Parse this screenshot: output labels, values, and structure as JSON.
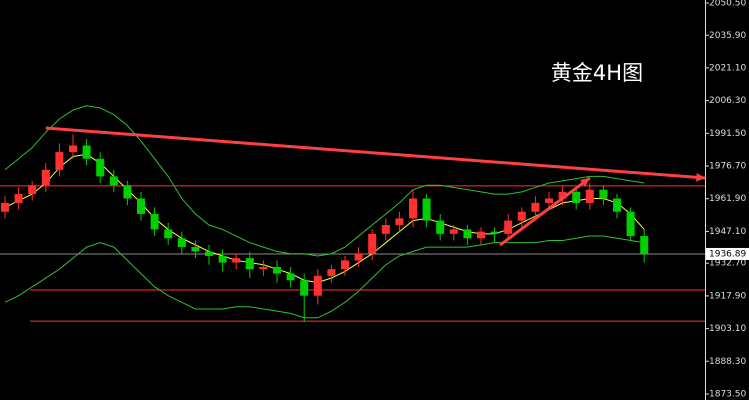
{
  "chart_data": {
    "type": "candlestick",
    "title": "黄金4H图",
    "opens": [
      1956,
      1960,
      1964,
      1968,
      1975,
      1983,
      1986,
      1980,
      1972,
      1968,
      1962,
      1955,
      1948,
      1944,
      1940,
      1938,
      1936,
      1933,
      1935,
      1930,
      1931,
      1928,
      1925,
      1918,
      1927,
      1930,
      1934,
      1937,
      1946,
      1950,
      1953,
      1962,
      1952,
      1946,
      1948,
      1944,
      1947,
      1946,
      1952,
      1956,
      1960,
      1962,
      1965,
      1960,
      1966,
      1962,
      1956,
      1945
    ],
    "highs": [
      1963,
      1967,
      1970,
      1978,
      1987,
      1991,
      1989,
      1983,
      1975,
      1970,
      1965,
      1958,
      1951,
      1947,
      1943,
      1941,
      1939,
      1937,
      1938,
      1934,
      1934,
      1931,
      1928,
      1930,
      1932,
      1936,
      1940,
      1948,
      1953,
      1956,
      1966,
      1964,
      1955,
      1950,
      1950,
      1949,
      1949,
      1955,
      1958,
      1963,
      1965,
      1968,
      1967,
      1969,
      1968,
      1964,
      1958,
      1948
    ],
    "lows": [
      1953,
      1957,
      1961,
      1965,
      1972,
      1980,
      1977,
      1969,
      1965,
      1959,
      1952,
      1945,
      1941,
      1937,
      1935,
      1932,
      1929,
      1930,
      1926,
      1927,
      1924,
      1922,
      1906,
      1914,
      1924,
      1927,
      1931,
      1934,
      1943,
      1947,
      1949,
      1949,
      1943,
      1943,
      1941,
      1941,
      1942,
      1943,
      1949,
      1953,
      1957,
      1959,
      1957,
      1957,
      1959,
      1953,
      1943,
      1933
    ],
    "closes": [
      1960,
      1964,
      1968,
      1975,
      1983,
      1986,
      1980,
      1972,
      1968,
      1962,
      1955,
      1948,
      1944,
      1940,
      1938,
      1936,
      1933,
      1935,
      1930,
      1931,
      1928,
      1925,
      1918,
      1927,
      1930,
      1934,
      1937,
      1946,
      1950,
      1953,
      1962,
      1952,
      1946,
      1948,
      1944,
      1947,
      1946,
      1952,
      1956,
      1960,
      1962,
      1965,
      1960,
      1966,
      1962,
      1956,
      1945,
      1937
    ],
    "up_color": "#ff3030",
    "down_color": "#00d000",
    "series": [
      {
        "color": "#ffff40",
        "values": [
          1958,
          1961,
          1964,
          1969,
          1976,
          1981,
          1982,
          1978,
          1972,
          1966,
          1960,
          1953,
          1948,
          1944,
          1941,
          1938,
          1936,
          1934,
          1933,
          1932,
          1930,
          1928,
          1925,
          1924,
          1926,
          1929,
          1933,
          1937,
          1942,
          1947,
          1952,
          1953,
          1951,
          1949,
          1947,
          1946,
          1946,
          1948,
          1951,
          1954,
          1957,
          1960,
          1961,
          1962,
          1962,
          1960,
          1955,
          1948
        ]
      },
      {
        "color": "#30c030",
        "values": [
          1975,
          1980,
          1985,
          1992,
          1998,
          2002,
          2004,
          2003,
          2000,
          1995,
          1988,
          1980,
          1972,
          1962,
          1955,
          1950,
          1948,
          1945,
          1942,
          1940,
          1938,
          1937,
          1937,
          1936,
          1937,
          1940,
          1945,
          1950,
          1955,
          1960,
          1966,
          1968,
          1968,
          1967,
          1966,
          1965,
          1964,
          1964,
          1965,
          1967,
          1969,
          1970,
          1971,
          1972,
          1972,
          1971,
          1970,
          1969
        ]
      },
      {
        "color": "#30c030",
        "values": [
          1915,
          1918,
          1922,
          1926,
          1930,
          1935,
          1940,
          1942,
          1940,
          1934,
          1928,
          1922,
          1918,
          1915,
          1912,
          1912,
          1912,
          1913,
          1913,
          1912,
          1911,
          1910,
          1908,
          1908,
          1911,
          1915,
          1920,
          1926,
          1932,
          1936,
          1938,
          1940,
          1940,
          1940,
          1940,
          1941,
          1942,
          1942,
          1942,
          1942,
          1943,
          1943,
          1944,
          1945,
          1945,
          1944,
          1943,
          1942
        ]
      }
    ],
    "levels": [
      1967.7,
      1920.6,
      1906.5
    ],
    "level_color": "#ff3030",
    "trend_lines": [
      {
        "color": "#ff4040",
        "x": [
          3,
          51.5
        ],
        "values": [
          1993.9,
          1971.3
        ]
      },
      {
        "color": "#ff4040",
        "x": [
          36.4,
          43
        ],
        "values": [
          1940.9,
          1971.3
        ]
      }
    ],
    "last_price": 1936.89,
    "ylim": [
      1870.78,
      2051.86
    ],
    "yticks": [
      {
        "value": 2050.5,
        "label": "2050.50"
      },
      {
        "value": 2035.9,
        "label": "2035.90"
      },
      {
        "value": 2021.1,
        "label": "2021.10"
      },
      {
        "value": 2006.3,
        "label": "2006.30"
      },
      {
        "value": 1991.5,
        "label": "1991.50"
      },
      {
        "value": 1976.7,
        "label": "1976.70"
      },
      {
        "value": 1961.9,
        "label": "1961.90"
      },
      {
        "value": 1947.1,
        "label": "1947.10"
      },
      {
        "value": 1932.7,
        "label": "1932.70"
      },
      {
        "value": 1917.9,
        "label": "1917.90"
      },
      {
        "value": 1903.1,
        "label": "1903.10"
      },
      {
        "value": 1888.3,
        "label": "1888.30"
      },
      {
        "value": 1873.5,
        "label": "1873.50"
      }
    ]
  }
}
